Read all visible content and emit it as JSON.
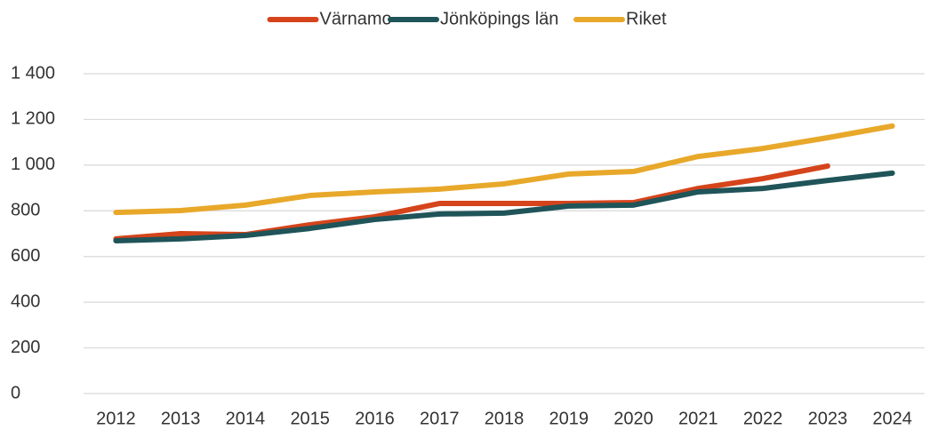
{
  "chart_data": {
    "type": "line",
    "categories": [
      "2012",
      "2013",
      "2014",
      "2015",
      "2016",
      "2017",
      "2018",
      "2019",
      "2020",
      "2021",
      "2022",
      "2023",
      "2024"
    ],
    "series": [
      {
        "name": "Värnamo",
        "color": "#d5441b",
        "values": [
          677,
          700,
          696,
          739,
          774,
          832,
          832,
          832,
          836,
          898,
          941,
          996,
          null
        ]
      },
      {
        "name": "Jönköpings län",
        "color": "#1f5459",
        "values": [
          669,
          677,
          692,
          723,
          762,
          786,
          790,
          821,
          825,
          883,
          898,
          933,
          965
        ]
      },
      {
        "name": "Riket",
        "color": "#e8a82a",
        "values": [
          793,
          801,
          825,
          867,
          883,
          895,
          918,
          961,
          972,
          1038,
          1073,
          1120,
          1171
        ]
      }
    ],
    "ylim": [
      0,
      1400
    ],
    "yticks": [
      0,
      200,
      400,
      600,
      800,
      {
        "value": 1000,
        "label": "1 000"
      },
      {
        "value": 1200,
        "label": "1 200"
      },
      {
        "value": 1400,
        "label": "1 400"
      }
    ],
    "grid": true,
    "legend": "top"
  }
}
